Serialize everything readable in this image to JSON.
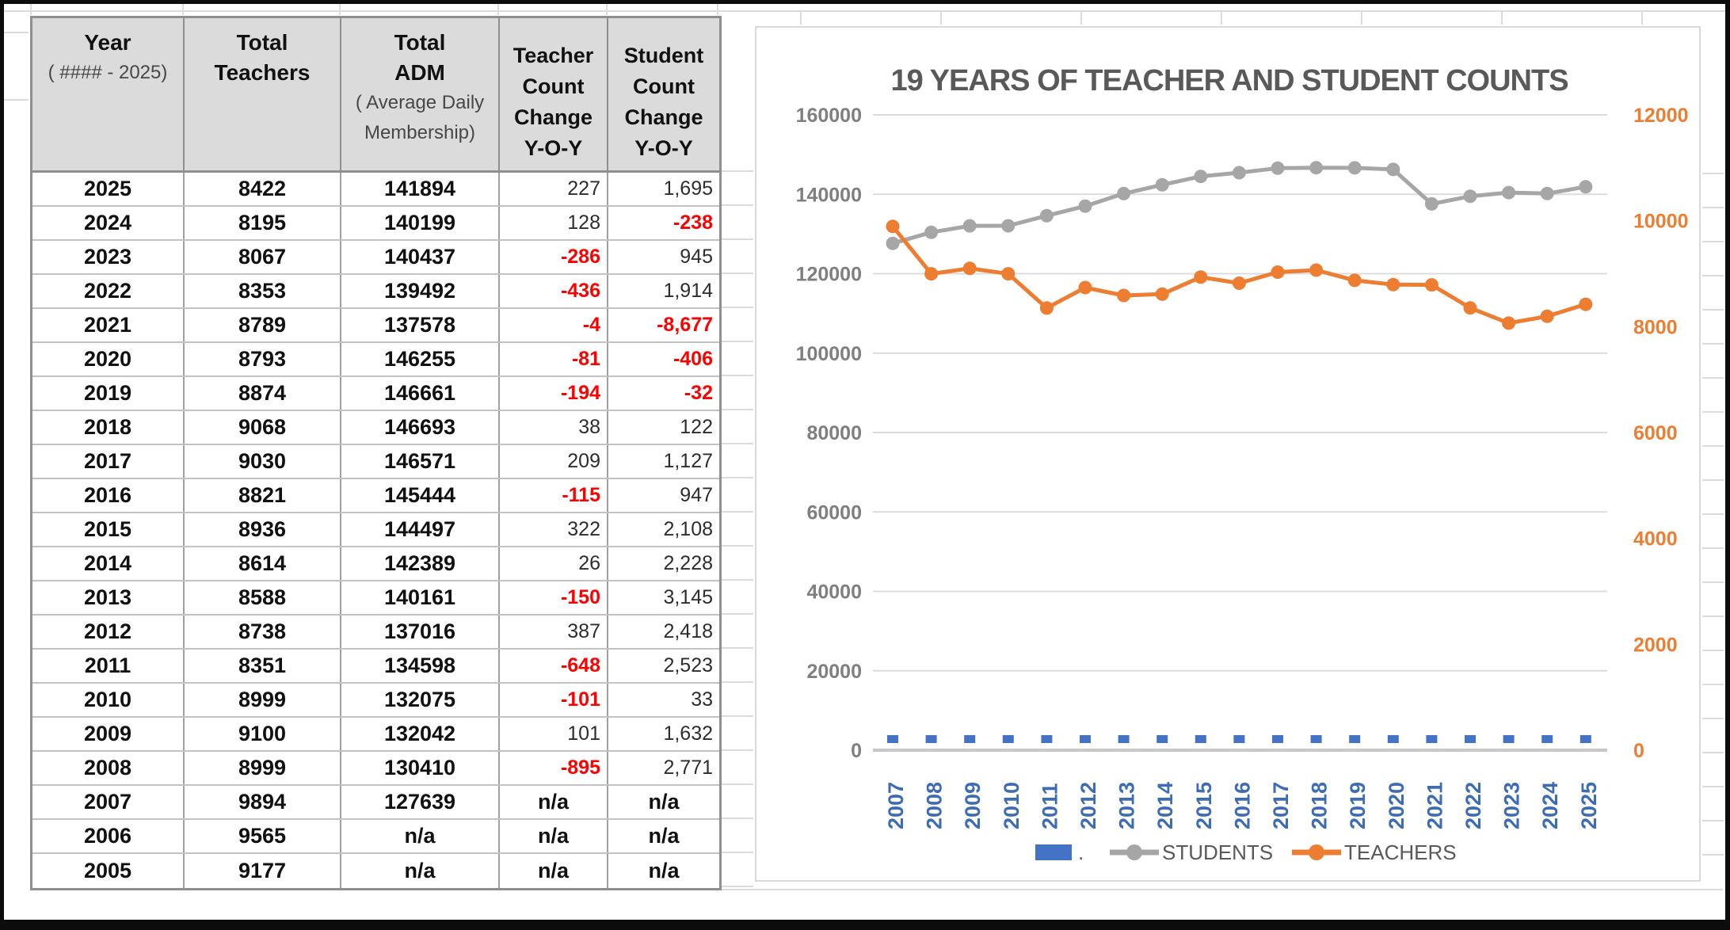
{
  "table": {
    "columns": [
      {
        "lines": [
          {
            "t": "Year",
            "b": true
          },
          {
            "t": "( #### - 2025)",
            "b": false
          }
        ]
      },
      {
        "lines": [
          {
            "t": "Total",
            "b": true
          },
          {
            "t": "Teachers",
            "b": true
          }
        ]
      },
      {
        "lines": [
          {
            "t": "Total",
            "b": true
          },
          {
            "t": "ADM",
            "b": true
          },
          {
            "t": "( Average Daily",
            "b": false
          },
          {
            "t": "Membership)",
            "b": false
          }
        ]
      },
      {
        "lines": [
          {
            "t": "Teacher",
            "b": true
          },
          {
            "t": "Count",
            "b": true
          },
          {
            "t": "Change",
            "b": true
          },
          {
            "t": "Y-O-Y",
            "b": true
          }
        ]
      },
      {
        "lines": [
          {
            "t": "Student",
            "b": true
          },
          {
            "t": "Count",
            "b": true
          },
          {
            "t": "Change",
            "b": true
          },
          {
            "t": "Y-O-Y",
            "b": true
          }
        ]
      }
    ],
    "rows": [
      [
        "2025",
        "8422",
        "141894",
        "227",
        "1,695"
      ],
      [
        "2024",
        "8195",
        "140199",
        "128",
        "-238"
      ],
      [
        "2023",
        "8067",
        "140437",
        "-286",
        "945"
      ],
      [
        "2022",
        "8353",
        "139492",
        "-436",
        "1,914"
      ],
      [
        "2021",
        "8789",
        "137578",
        "-4",
        "-8,677"
      ],
      [
        "2020",
        "8793",
        "146255",
        "-81",
        "-406"
      ],
      [
        "2019",
        "8874",
        "146661",
        "-194",
        "-32"
      ],
      [
        "2018",
        "9068",
        "146693",
        "38",
        "122"
      ],
      [
        "2017",
        "9030",
        "146571",
        "209",
        "1,127"
      ],
      [
        "2016",
        "8821",
        "145444",
        "-115",
        "947"
      ],
      [
        "2015",
        "8936",
        "144497",
        "322",
        "2,108"
      ],
      [
        "2014",
        "8614",
        "142389",
        "26",
        "2,228"
      ],
      [
        "2013",
        "8588",
        "140161",
        "-150",
        "3,145"
      ],
      [
        "2012",
        "8738",
        "137016",
        "387",
        "2,418"
      ],
      [
        "2011",
        "8351",
        "134598",
        "-648",
        "2,523"
      ],
      [
        "2010",
        "8999",
        "132075",
        "-101",
        "33"
      ],
      [
        "2009",
        "9100",
        "132042",
        "101",
        "1,632"
      ],
      [
        "2008",
        "8999",
        "130410",
        "-895",
        "2,771"
      ],
      [
        "2007",
        "9894",
        "127639",
        "n/a",
        "n/a"
      ],
      [
        "2006",
        "9565",
        "n/a",
        "n/a",
        "n/a"
      ],
      [
        "2005",
        "9177",
        "n/a",
        "n/a",
        "n/a"
      ]
    ],
    "negative_color": "#ff0000"
  },
  "chart_data": {
    "type": "line",
    "title": "19 YEARS OF TEACHER AND STUDENT COUNTS",
    "title_color": "#595959",
    "x": [
      "2007",
      "2008",
      "2009",
      "2010",
      "2011",
      "2012",
      "2013",
      "2014",
      "2015",
      "2016",
      "2017",
      "2018",
      "2019",
      "2020",
      "2021",
      "2022",
      "2023",
      "2024",
      "2025"
    ],
    "x_label_color": "#3d6cb4",
    "series": [
      {
        "name": ".",
        "axis": "left",
        "type": "bar-marker",
        "color": "#4472c4",
        "values": [
          0,
          0,
          0,
          0,
          0,
          0,
          0,
          0,
          0,
          0,
          0,
          0,
          0,
          0,
          0,
          0,
          0,
          0,
          0
        ]
      },
      {
        "name": "STUDENTS",
        "axis": "left",
        "type": "line",
        "color": "#a6a6a6",
        "values": [
          127639,
          130410,
          132042,
          132075,
          134598,
          137016,
          140161,
          142389,
          144497,
          145444,
          146571,
          146693,
          146661,
          146255,
          137578,
          139492,
          140437,
          140199,
          141894
        ]
      },
      {
        "name": "TEACHERS",
        "axis": "right",
        "type": "line",
        "color": "#ed7d31",
        "values": [
          9894,
          8999,
          9100,
          8999,
          8351,
          8738,
          8588,
          8614,
          8936,
          8821,
          9030,
          9068,
          8874,
          8793,
          8789,
          8353,
          8067,
          8195,
          8422
        ]
      }
    ],
    "left_axis": {
      "min": 0,
      "max": 160000,
      "step": 20000,
      "color": "#7f7f7f",
      "labels": [
        "160000",
        "140000",
        "120000",
        "100000",
        "80000",
        "60000",
        "40000",
        "20000",
        "0"
      ]
    },
    "right_axis": {
      "min": 0,
      "max": 12000,
      "step": 2000,
      "color": "#ed7d31",
      "labels": [
        "12000",
        "10000",
        "8000",
        "6000",
        "4000",
        "2000",
        "0"
      ]
    },
    "grid": true,
    "gridline_color": "#dcdcdc",
    "zero_line_color": "#c8c8c8",
    "legend_position": "bottom",
    "legend_text_color": "#595959",
    "legend": [
      {
        "label": ".",
        "type": "bar",
        "color": "#4472c4"
      },
      {
        "label": "STUDENTS",
        "type": "line",
        "color": "#a6a6a6"
      },
      {
        "label": "TEACHERS",
        "type": "line",
        "color": "#ed7d31"
      }
    ]
  }
}
